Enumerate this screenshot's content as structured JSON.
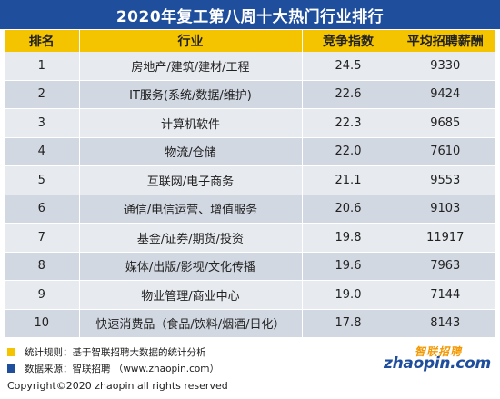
{
  "title": "2020年复工第八周十大热门行业排行",
  "table": {
    "headers": [
      "排名",
      "行业",
      "竞争指数",
      "平均招聘薪酬"
    ],
    "rows": [
      {
        "rank": "1",
        "industry": "房地产/建筑/建材/工程",
        "competition": "24.5",
        "salary": "9330"
      },
      {
        "rank": "2",
        "industry": "IT服务(系统/数据/维护)",
        "competition": "22.6",
        "salary": "9424"
      },
      {
        "rank": "3",
        "industry": "计算机软件",
        "competition": "22.3",
        "salary": "9685"
      },
      {
        "rank": "4",
        "industry": "物流/仓储",
        "competition": "22.0",
        "salary": "7610"
      },
      {
        "rank": "5",
        "industry": "互联网/电子商务",
        "competition": "21.1",
        "salary": "9553"
      },
      {
        "rank": "6",
        "industry": "通信/电信运营、增值服务",
        "competition": "20.6",
        "salary": "9103"
      },
      {
        "rank": "7",
        "industry": "基金/证券/期货/投资",
        "competition": "19.8",
        "salary": "11917"
      },
      {
        "rank": "8",
        "industry": "媒体/出版/影视/文化传播",
        "competition": "19.6",
        "salary": "7963"
      },
      {
        "rank": "9",
        "industry": "物业管理/商业中心",
        "competition": "19.0",
        "salary": "7144"
      },
      {
        "rank": "10",
        "industry": "快速消费品（食品/饮料/烟酒/日化）",
        "competition": "17.8",
        "salary": "8143"
      }
    ]
  },
  "notes": [
    {
      "text": "统计规则：基于智联招聘大数据的统计分析",
      "color": "#f5c400"
    },
    {
      "text": "数据来源：智联招聘 （www.zhaopin.com）",
      "color": "#1f4e9c"
    }
  ],
  "copyright": "Copyright©2020 zhaopin all rights reserved",
  "logo": {
    "cn": "智联招聘",
    "en": "zhaopin.com"
  },
  "colors": {
    "title_bg": "#1f4e9c",
    "header_bg": "#f5c400",
    "row_light": "#e7eaef",
    "row_dark": "#d2d8e2",
    "logo_orange": "#f39800"
  }
}
